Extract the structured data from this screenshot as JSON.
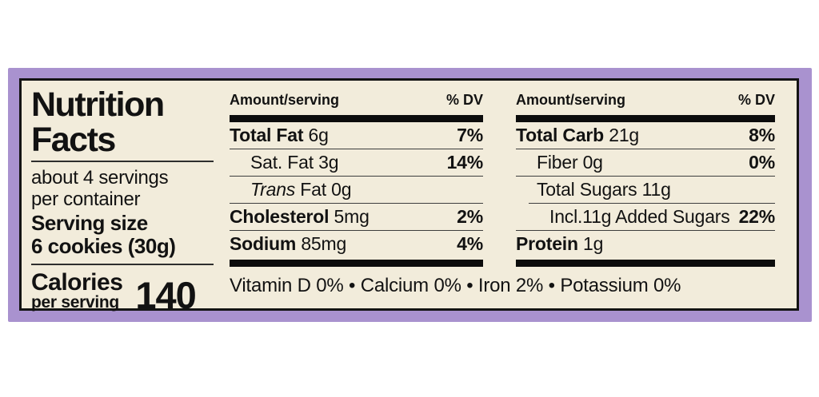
{
  "colors": {
    "label_purple": "#a992cf",
    "label_cream": "#f2ecdb",
    "text_black": "#121212"
  },
  "label": {
    "title_line1": "Nutrition",
    "title_line2": "Facts",
    "servings_line1": "about 4 servings",
    "servings_line2": "per container",
    "serving_size_line1": "Serving size",
    "serving_size_line2": "6 cookies (30g)",
    "calories_label": "Calories",
    "calories_sub": "per serving",
    "calories_value": "140"
  },
  "columns": [
    {
      "header_amount": "Amount/serving",
      "header_dv": "% DV",
      "rows": [
        {
          "b": "Total Fat",
          "i": "",
          "r": " 6g",
          "dv": "7%"
        },
        {
          "b": "",
          "i": "",
          "r": "Sat. Fat 3g",
          "dv": "14%"
        },
        {
          "b": "",
          "i": "Trans",
          "r": " Fat 0g",
          "dv": ""
        },
        {
          "b": "Cholesterol",
          "i": "",
          "r": " 5mg",
          "dv": "2%"
        },
        {
          "b": "Sodium",
          "i": "",
          "r": " 85mg",
          "dv": "4%"
        }
      ]
    },
    {
      "header_amount": "Amount/serving",
      "header_dv": "% DV",
      "rows": [
        {
          "b": "Total Carb",
          "i": "",
          "r": " 21g",
          "dv": "8%"
        },
        {
          "b": "",
          "i": "",
          "r": "Fiber 0g",
          "dv": "0%"
        },
        {
          "b": "",
          "i": "",
          "r": "Total Sugars 11g",
          "dv": ""
        },
        {
          "b": "",
          "i": "",
          "r": "Incl.11g Added Sugars",
          "dv": "22%"
        },
        {
          "b": "Protein",
          "i": "",
          "r": " 1g",
          "dv": ""
        }
      ]
    }
  ],
  "footer": {
    "text": "Vitamin D 0% • Calcium 0% • Iron 2% • Potassium 0%"
  }
}
